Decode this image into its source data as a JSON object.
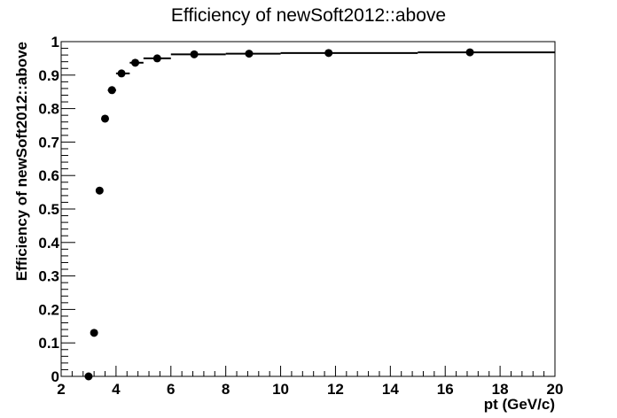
{
  "chart_data": {
    "type": "scatter",
    "title": "Efficiency of newSoft2012::above",
    "xlabel": "pt (GeV/c)",
    "ylabel": "Efficiency of newSoft2012::above",
    "xlim": [
      2,
      20
    ],
    "ylim": [
      0,
      1
    ],
    "grid": false,
    "x_ticks": [
      "2",
      "4",
      "6",
      "8",
      "10",
      "12",
      "14",
      "16",
      "18",
      "20"
    ],
    "y_ticks": [
      "0",
      "0.1",
      "0.2",
      "0.3",
      "0.4",
      "0.5",
      "0.6",
      "0.7",
      "0.8",
      "0.9",
      "1"
    ],
    "series": [
      {
        "x": [
          3.0,
          3.2,
          3.4,
          3.6,
          3.85,
          4.2,
          4.7,
          5.5,
          6.85,
          8.85,
          11.75,
          16.9
        ],
        "y": [
          0.0,
          0.13,
          0.555,
          0.77,
          0.855,
          0.905,
          0.937,
          0.95,
          0.962,
          0.964,
          0.966,
          0.968
        ],
        "x_low": [
          2.9,
          3.1,
          3.3,
          3.5,
          3.7,
          4.0,
          4.5,
          5.0,
          6.0,
          8.0,
          10.0,
          15.0
        ],
        "x_high": [
          3.1,
          3.3,
          3.5,
          3.7,
          4.0,
          4.5,
          5.0,
          6.0,
          8.0,
          10.0,
          15.0,
          20.0
        ]
      }
    ],
    "marker_color": "#000000"
  }
}
